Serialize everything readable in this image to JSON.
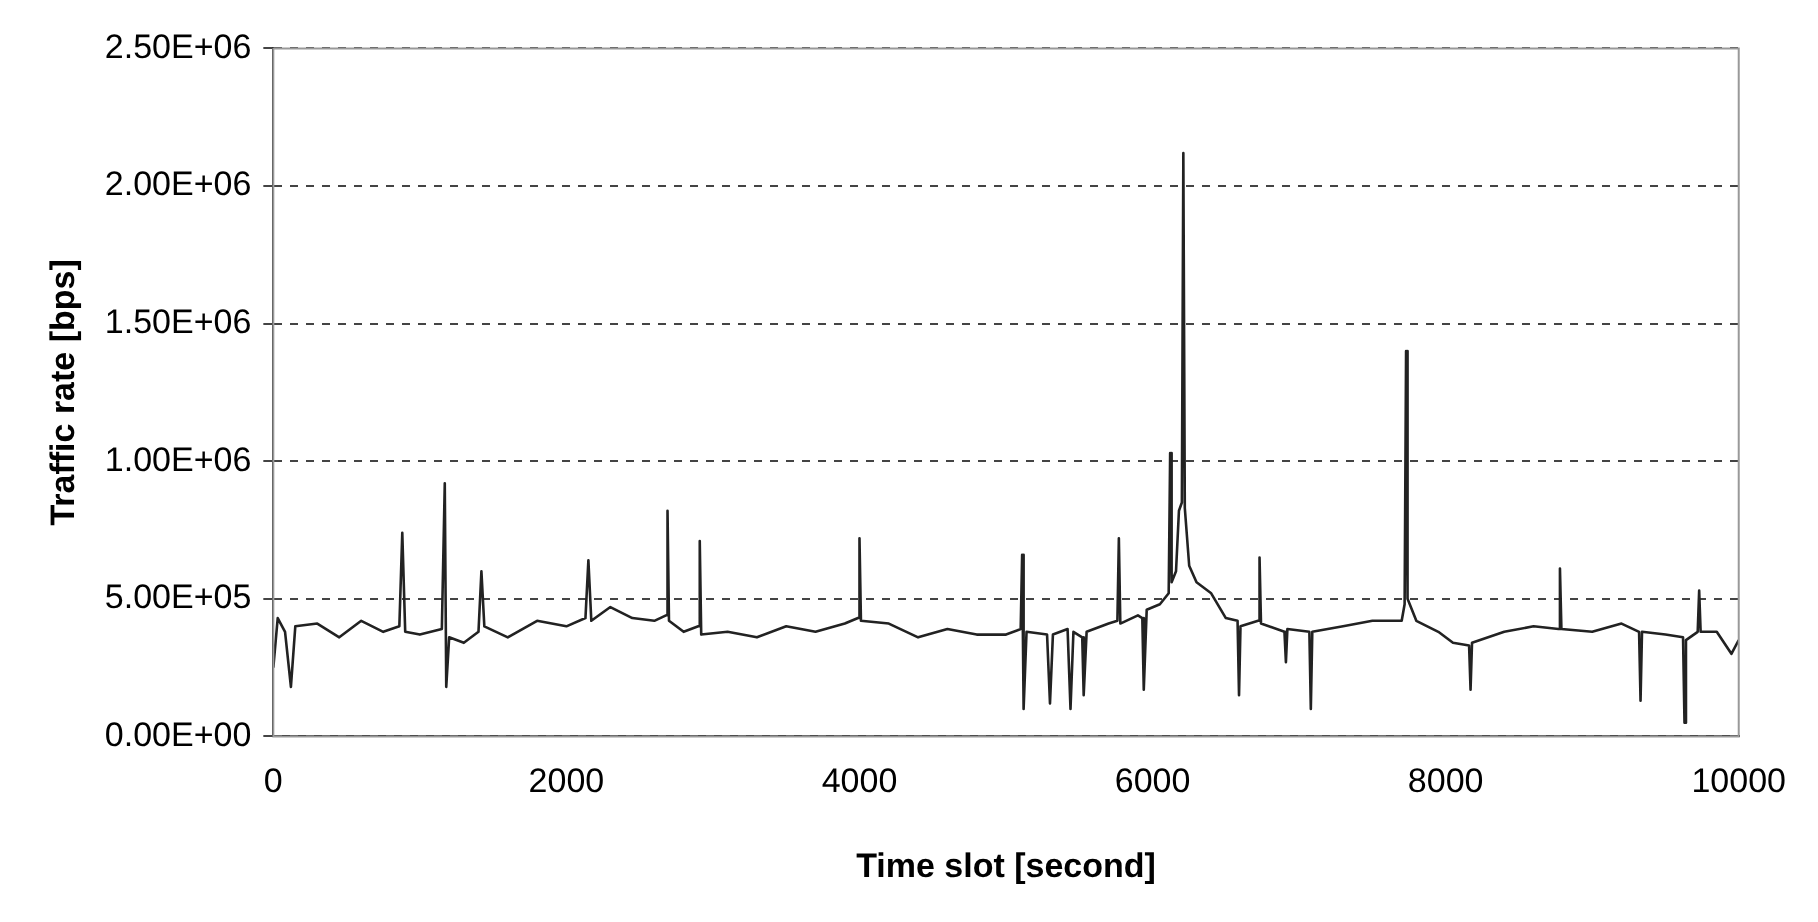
{
  "chart_data": {
    "type": "line",
    "xlabel": "Time slot [second]",
    "ylabel": "Traffic rate [bps]",
    "xlim": [
      0,
      10000
    ],
    "xticks": [
      0,
      2000,
      4000,
      6000,
      8000,
      10000
    ],
    "ylim": [
      0,
      2500000
    ],
    "yticks": [
      {
        "value": 0,
        "label": "0.00E+00"
      },
      {
        "value": 500000,
        "label": "5.00E+05"
      },
      {
        "value": 1000000,
        "label": "1.00E+06"
      },
      {
        "value": 1500000,
        "label": "1.50E+06"
      },
      {
        "value": 2000000,
        "label": "2.00E+06"
      },
      {
        "value": 2500000,
        "label": "2.50E+06"
      }
    ],
    "grid": "y",
    "legend": false,
    "marker": "none",
    "line_style": "solid",
    "series": [
      {
        "color": "#222222",
        "x": [
          0,
          30,
          80,
          120,
          150,
          300,
          450,
          600,
          750,
          860,
          880,
          900,
          1000,
          1150,
          1170,
          1180,
          1200,
          1300,
          1400,
          1420,
          1440,
          1600,
          1800,
          2000,
          2130,
          2150,
          2170,
          2300,
          2450,
          2600,
          2680,
          2690,
          2700,
          2800,
          2900,
          2910,
          2920,
          3100,
          3300,
          3500,
          3700,
          3900,
          3990,
          4000,
          4010,
          4200,
          4400,
          4600,
          4800,
          5000,
          5100,
          5110,
          5120,
          5140,
          5280,
          5300,
          5320,
          5420,
          5440,
          5460,
          5520,
          5530,
          5550,
          5700,
          5760,
          5770,
          5780,
          5900,
          5930,
          5940,
          5960,
          6050,
          6110,
          6120,
          6130,
          6160,
          6180,
          6200,
          6210,
          6220,
          6250,
          6300,
          6400,
          6500,
          6580,
          6590,
          6600,
          6720,
          6730,
          6740,
          6900,
          6910,
          6920,
          7070,
          7080,
          7090,
          7300,
          7500,
          7700,
          7720,
          7730,
          7740,
          7800,
          7950,
          8050,
          8160,
          8170,
          8180,
          8400,
          8600,
          8770,
          8780,
          8790,
          9000,
          9200,
          9320,
          9330,
          9340,
          9500,
          9620,
          9630,
          9640,
          9720,
          9730,
          9740,
          9850,
          9950,
          10000
        ],
        "values": [
          250000,
          430000,
          380000,
          180000,
          400000,
          410000,
          360000,
          420000,
          380000,
          400000,
          740000,
          380000,
          370000,
          390000,
          920000,
          180000,
          360000,
          340000,
          380000,
          600000,
          400000,
          360000,
          420000,
          400000,
          430000,
          640000,
          420000,
          470000,
          430000,
          420000,
          440000,
          820000,
          420000,
          380000,
          400000,
          710000,
          370000,
          380000,
          360000,
          400000,
          380000,
          410000,
          430000,
          720000,
          420000,
          410000,
          360000,
          390000,
          370000,
          370000,
          390000,
          660000,
          100000,
          380000,
          370000,
          120000,
          370000,
          390000,
          100000,
          380000,
          360000,
          150000,
          380000,
          410000,
          420000,
          720000,
          410000,
          440000,
          430000,
          170000,
          460000,
          480000,
          520000,
          1030000,
          560000,
          600000,
          820000,
          850000,
          2120000,
          830000,
          620000,
          560000,
          520000,
          430000,
          420000,
          150000,
          400000,
          420000,
          650000,
          410000,
          380000,
          270000,
          390000,
          380000,
          100000,
          380000,
          400000,
          420000,
          420000,
          480000,
          1400000,
          500000,
          420000,
          380000,
          340000,
          330000,
          170000,
          340000,
          380000,
          400000,
          390000,
          610000,
          390000,
          380000,
          410000,
          380000,
          130000,
          380000,
          370000,
          360000,
          50000,
          350000,
          380000,
          530000,
          380000,
          380000,
          300000,
          350000
        ]
      }
    ]
  }
}
